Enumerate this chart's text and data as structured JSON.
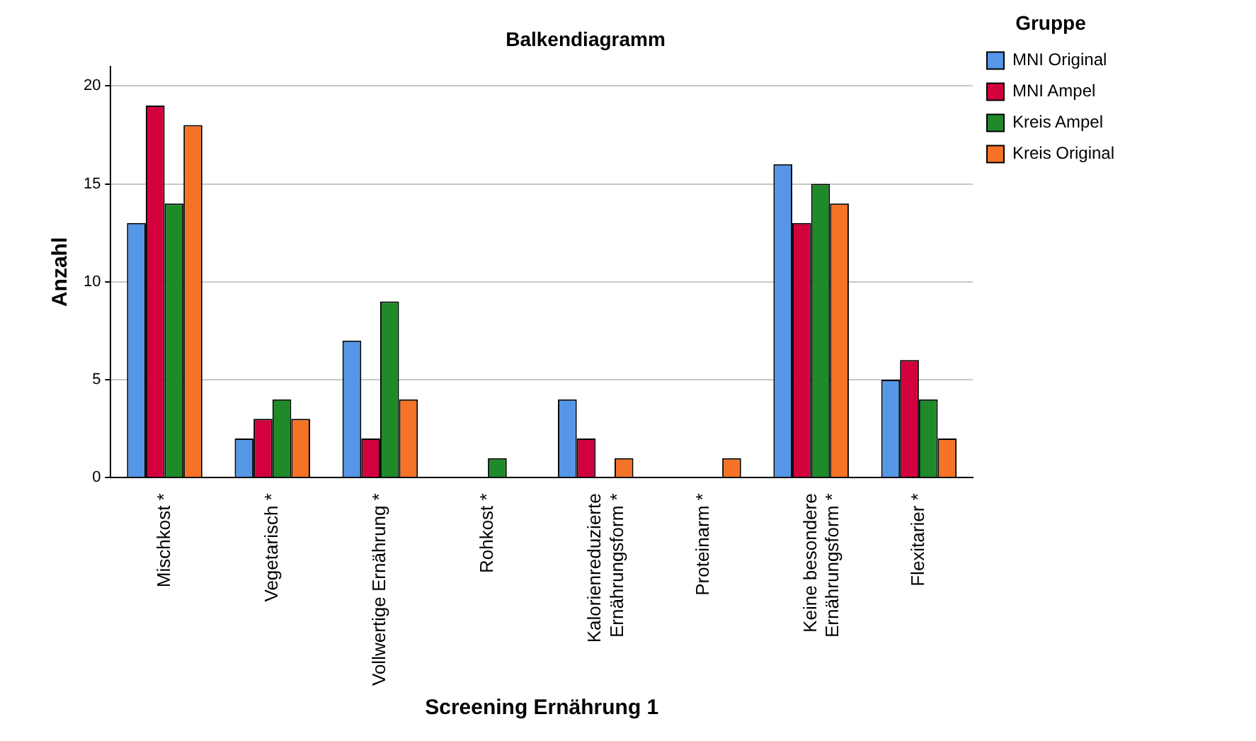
{
  "chart_data": {
    "type": "bar",
    "title": "Balkendiagramm",
    "xlabel": "Screening Ernährung 1",
    "ylabel": "Anzahl",
    "legend_title": "Gruppe",
    "categories": [
      "Mischkost *",
      "Vegetarisch *",
      "Vollwertige Ernährung *",
      "Rohkost *",
      "Kalorienreduzierte\nErnährungsform *",
      "Proteinarm *",
      "Keine besondere\nErnährungsform *",
      "Flexitarier *"
    ],
    "series": [
      {
        "name": "MNI Original",
        "color": "#5596e6",
        "values": [
          13,
          2,
          7,
          0,
          4,
          0,
          16,
          5
        ]
      },
      {
        "name": "MNI Ampel",
        "color": "#d2003c",
        "values": [
          19,
          3,
          2,
          0,
          2,
          0,
          13,
          6
        ]
      },
      {
        "name": "Kreis Ampel",
        "color": "#1f8a2a",
        "values": [
          14,
          4,
          9,
          1,
          0,
          0,
          15,
          4
        ]
      },
      {
        "name": "Kreis Original",
        "color": "#f57326",
        "values": [
          18,
          3,
          4,
          0,
          1,
          1,
          14,
          2
        ]
      }
    ],
    "ylim": [
      0,
      21
    ],
    "yticks": [
      0,
      5,
      10,
      15,
      20
    ],
    "grid": "y",
    "legend": "top right"
  }
}
